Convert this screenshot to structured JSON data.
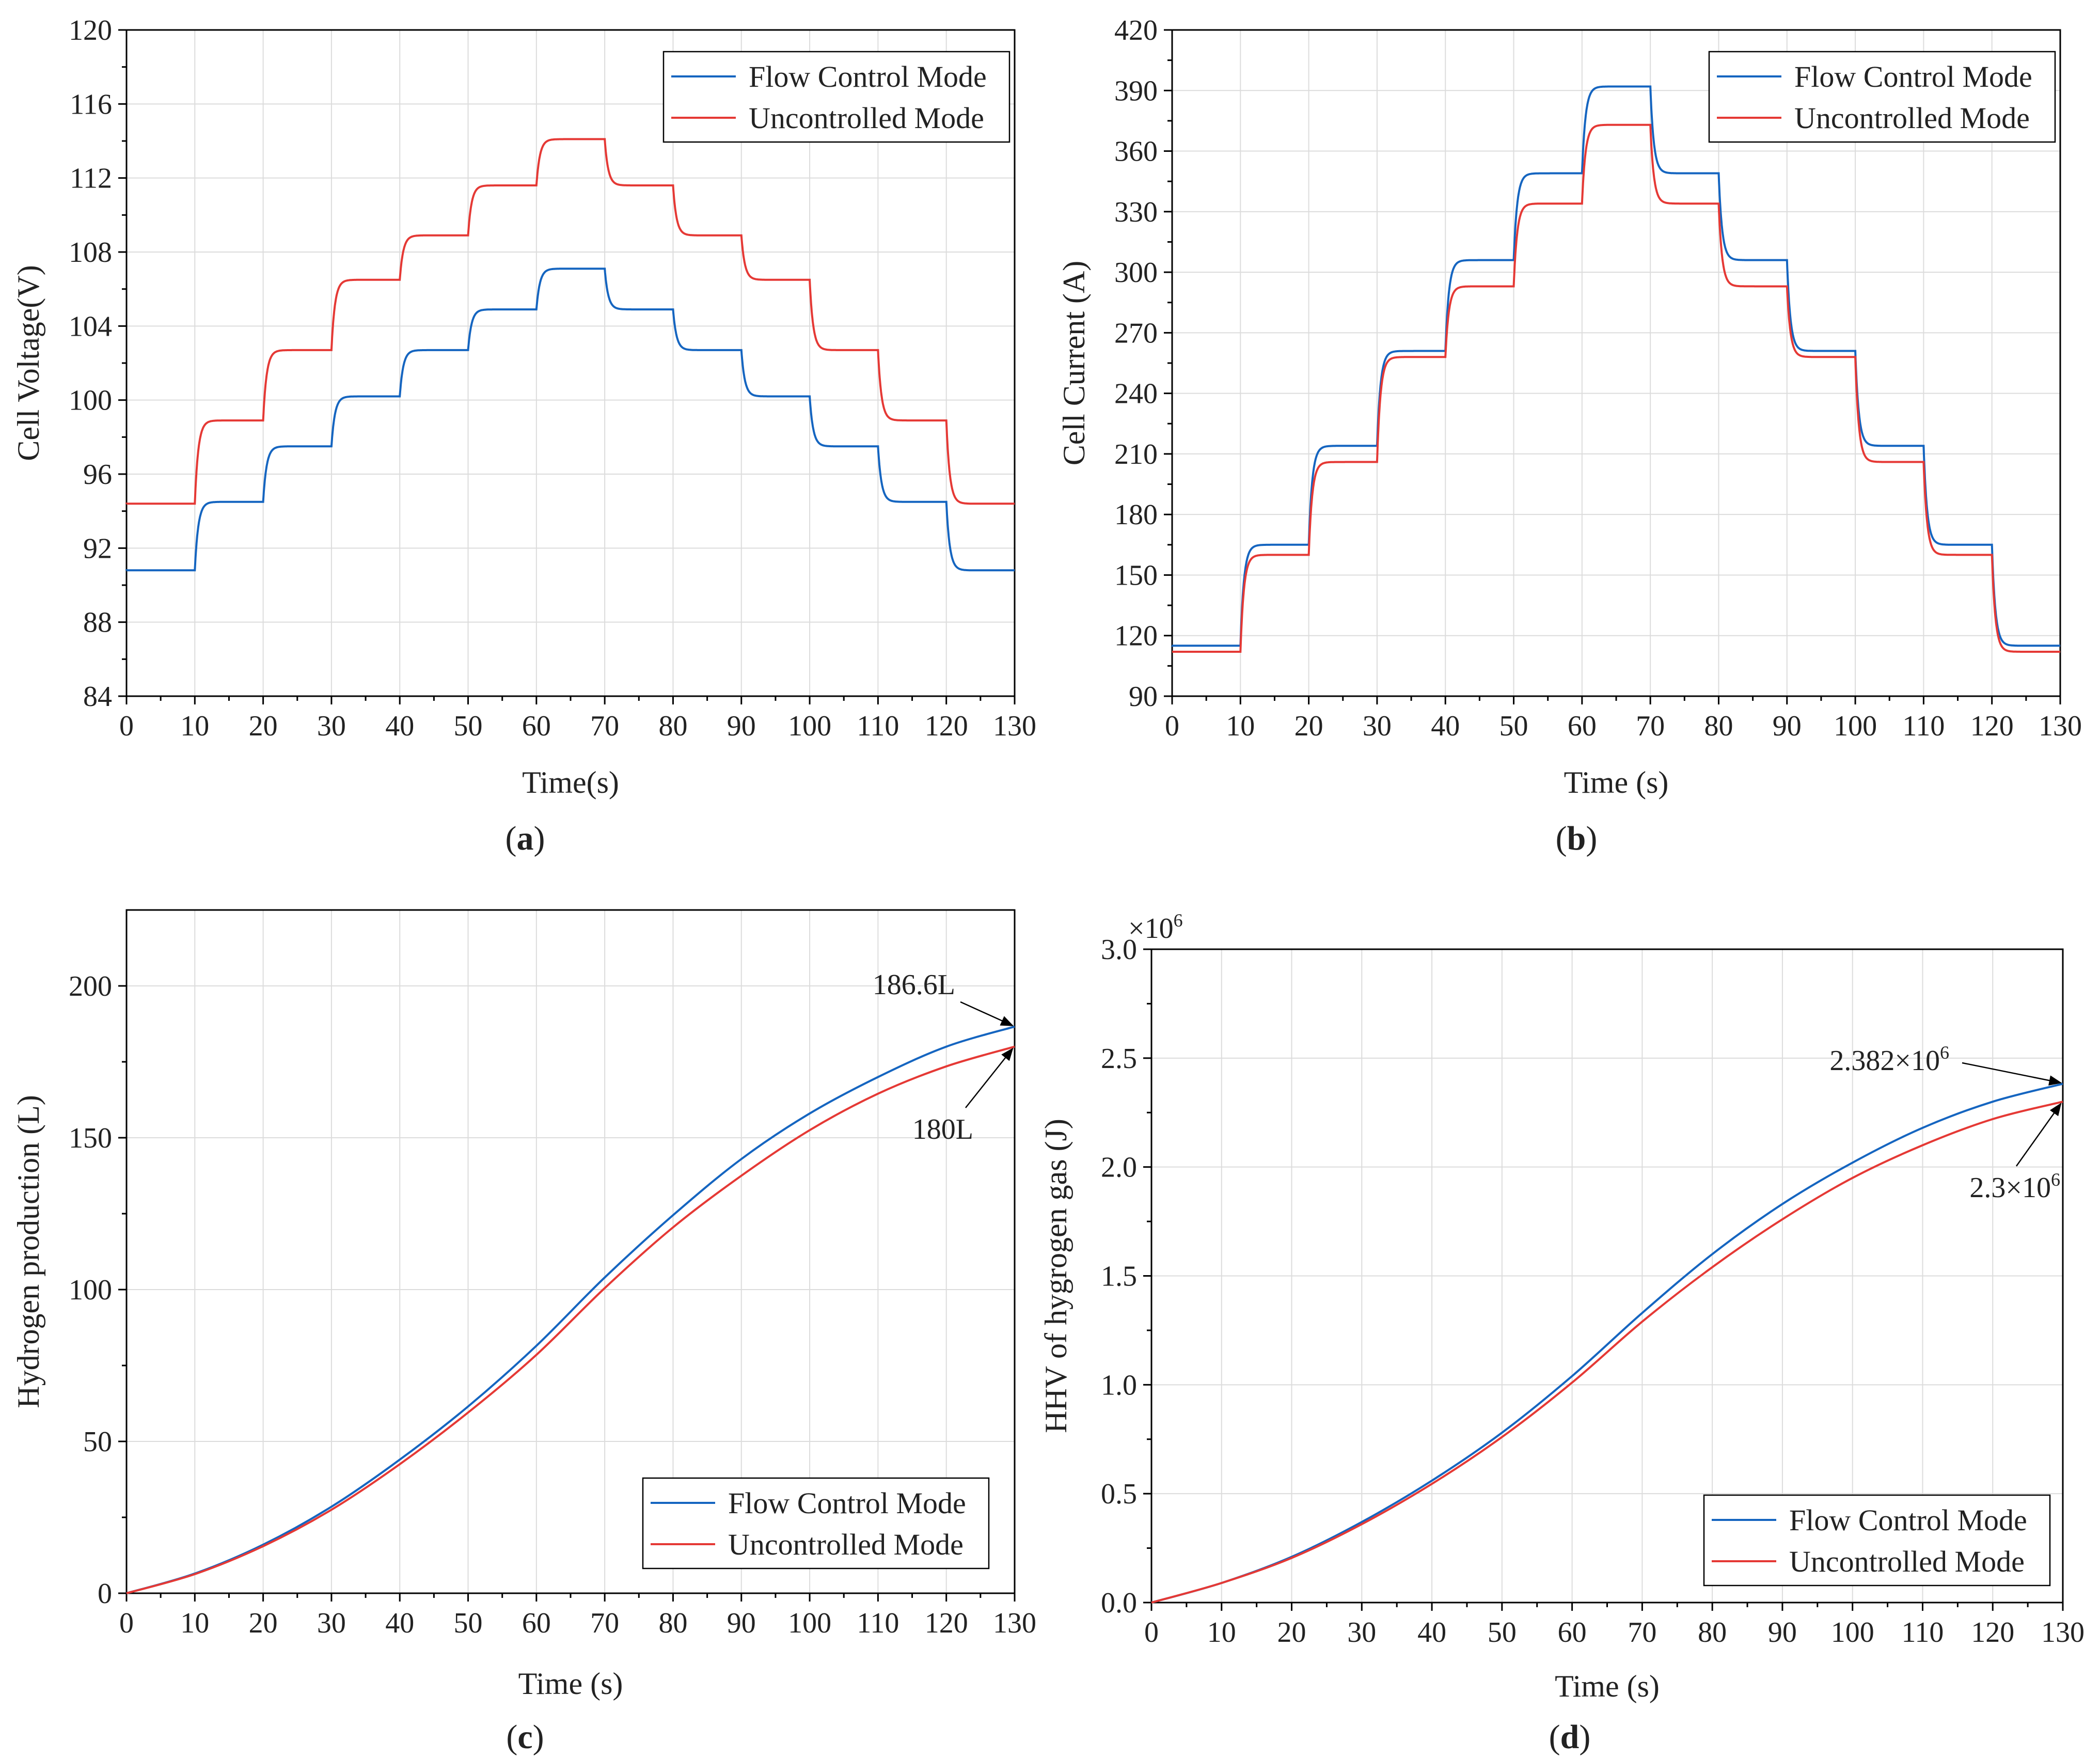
{
  "colors": {
    "flow_control": "#1565c0",
    "uncontrolled": "#e53935",
    "grid": "#dcdcdc"
  },
  "chart_data": [
    {
      "id": "a",
      "type": "line",
      "panel_label": "a",
      "xlabel": "Time(s)",
      "ylabel": "Cell Voltage(V)",
      "xlim": [
        0,
        130
      ],
      "ylim": [
        84,
        120
      ],
      "xticks": [
        0,
        10,
        20,
        30,
        40,
        50,
        60,
        70,
        80,
        90,
        100,
        110,
        120,
        130
      ],
      "yticks": [
        84,
        88,
        92,
        96,
        100,
        104,
        108,
        112,
        116,
        120
      ],
      "grid": true,
      "legend": {
        "position": "top-right",
        "entries": [
          "Flow Control Mode",
          "Uncontrolled Mode"
        ]
      },
      "series": [
        {
          "name": "Flow Control Mode",
          "color": "#1565c0",
          "step_times": [
            0,
            10,
            20,
            30,
            40,
            50,
            60,
            70,
            80,
            90,
            100,
            110,
            120,
            130
          ],
          "levels": [
            90.8,
            94.5,
            97.5,
            100.2,
            102.7,
            104.9,
            107.1,
            104.9,
            102.7,
            100.2,
            97.5,
            94.5,
            90.8
          ]
        },
        {
          "name": "Uncontrolled Mode",
          "color": "#e53935",
          "step_times": [
            0,
            10,
            20,
            30,
            40,
            50,
            60,
            70,
            80,
            90,
            100,
            110,
            120,
            130
          ],
          "levels": [
            94.4,
            98.9,
            102.7,
            106.5,
            108.9,
            111.6,
            114.1,
            111.6,
            108.9,
            106.5,
            102.7,
            98.9,
            94.4
          ]
        }
      ]
    },
    {
      "id": "b",
      "type": "line",
      "panel_label": "b",
      "xlabel": "Time (s)",
      "ylabel": "Cell Current (A)",
      "xlim": [
        0,
        130
      ],
      "ylim": [
        90,
        420
      ],
      "xticks": [
        0,
        10,
        20,
        30,
        40,
        50,
        60,
        70,
        80,
        90,
        100,
        110,
        120,
        130
      ],
      "yticks": [
        90,
        120,
        150,
        180,
        210,
        240,
        270,
        300,
        330,
        360,
        390,
        420
      ],
      "grid": true,
      "legend": {
        "position": "top-right",
        "entries": [
          "Flow Control Mode",
          "Uncontrolled Mode"
        ]
      },
      "series": [
        {
          "name": "Flow Control Mode",
          "color": "#1565c0",
          "step_times": [
            0,
            10,
            20,
            30,
            40,
            50,
            60,
            70,
            80,
            90,
            100,
            110,
            120,
            130
          ],
          "levels": [
            115,
            165,
            214,
            261,
            306,
            349,
            392,
            349,
            306,
            261,
            214,
            165,
            115
          ]
        },
        {
          "name": "Uncontrolled Mode",
          "color": "#e53935",
          "step_times": [
            0,
            10,
            20,
            30,
            40,
            50,
            60,
            70,
            80,
            90,
            100,
            110,
            120,
            130
          ],
          "levels": [
            112,
            160,
            206,
            258,
            293,
            334,
            373,
            334,
            293,
            258,
            206,
            160,
            112
          ]
        }
      ]
    },
    {
      "id": "c",
      "type": "line",
      "panel_label": "c",
      "xlabel": "Time (s)",
      "ylabel": "Hydrogen production (L)",
      "xlim": [
        0,
        130
      ],
      "ylim": [
        0,
        225
      ],
      "xticks": [
        0,
        10,
        20,
        30,
        40,
        50,
        60,
        70,
        80,
        90,
        100,
        110,
        120,
        130
      ],
      "yticks": [
        0,
        50,
        100,
        150,
        200
      ],
      "grid": true,
      "legend": {
        "position": "bottom-right",
        "entries": [
          "Flow Control Mode",
          "Uncontrolled Mode"
        ]
      },
      "series": [
        {
          "name": "Flow Control Mode",
          "color": "#1565c0",
          "x": [
            0,
            10,
            20,
            30,
            40,
            50,
            60,
            70,
            80,
            90,
            100,
            110,
            120,
            130
          ],
          "y": [
            0,
            6.5,
            16,
            28.5,
            44,
            61.5,
            81.5,
            104,
            124.5,
            143,
            158,
            170,
            180,
            186.6
          ]
        },
        {
          "name": "Uncontrolled Mode",
          "color": "#e53935",
          "x": [
            0,
            10,
            20,
            30,
            40,
            50,
            60,
            70,
            80,
            90,
            100,
            110,
            120,
            130
          ],
          "y": [
            0,
            6.3,
            15.5,
            27.5,
            42.5,
            59.5,
            78.5,
            100.5,
            120.5,
            137.5,
            152.5,
            164.5,
            173.5,
            180
          ]
        }
      ],
      "annotations": [
        {
          "text": "186.6L",
          "x": 130,
          "y": 186.6
        },
        {
          "text": "180L",
          "x": 130,
          "y": 180
        }
      ]
    },
    {
      "id": "d",
      "type": "line",
      "panel_label": "d",
      "xlabel": "Time (s)",
      "ylabel": "HHV of hygrogen gas (J)",
      "y_multiplier": "×10",
      "y_multiplier_exp": "6",
      "xlim": [
        0,
        130
      ],
      "ylim": [
        0,
        3.0
      ],
      "xticks": [
        0,
        10,
        20,
        30,
        40,
        50,
        60,
        70,
        80,
        90,
        100,
        110,
        120,
        130
      ],
      "yticks": [
        0.0,
        0.5,
        1.0,
        1.5,
        2.0,
        2.5,
        3.0
      ],
      "grid": true,
      "legend": {
        "position": "bottom-right",
        "entries": [
          "Flow Control Mode",
          "Uncontrolled Mode"
        ]
      },
      "series": [
        {
          "name": "Flow Control Mode",
          "color": "#1565c0",
          "x": [
            0,
            10,
            20,
            30,
            40,
            50,
            60,
            70,
            80,
            90,
            100,
            110,
            120,
            130
          ],
          "y": [
            0,
            0.09,
            0.21,
            0.37,
            0.56,
            0.78,
            1.04,
            1.33,
            1.6,
            1.83,
            2.02,
            2.18,
            2.3,
            2.382
          ]
        },
        {
          "name": "Uncontrolled Mode",
          "color": "#e53935",
          "x": [
            0,
            10,
            20,
            30,
            40,
            50,
            60,
            70,
            80,
            90,
            100,
            110,
            120,
            130
          ],
          "y": [
            0,
            0.09,
            0.205,
            0.36,
            0.545,
            0.76,
            1.01,
            1.29,
            1.54,
            1.76,
            1.95,
            2.1,
            2.22,
            2.3
          ]
        }
      ],
      "annotations": [
        {
          "text": "2.382×10",
          "exp": "6",
          "x": 130,
          "y": 2.382
        },
        {
          "text": "2.3×10",
          "exp": "6",
          "x": 130,
          "y": 2.3
        }
      ]
    }
  ]
}
